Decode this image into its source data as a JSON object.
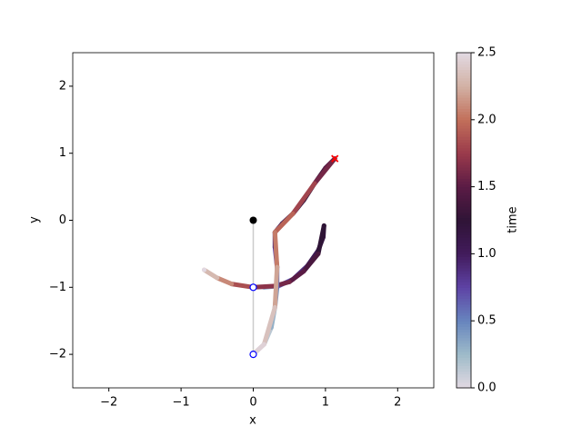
{
  "chart_data": {
    "type": "trajectory",
    "x_label": "x",
    "y_label": "y",
    "xlim": [
      -2.5,
      2.5
    ],
    "ylim": [
      -2.5,
      2.5
    ],
    "xticks": [
      {
        "value": -2,
        "label": "−2"
      },
      {
        "value": -1,
        "label": "−1"
      },
      0,
      1,
      2
    ],
    "yticks": [
      {
        "value": -2,
        "label": "−2"
      },
      {
        "value": -1,
        "label": "−1"
      },
      0,
      1,
      2
    ],
    "colorbar": {
      "label": "time",
      "lim": [
        0,
        2.5
      ],
      "ticks": [
        {
          "value": 0,
          "label": "0.0"
        },
        {
          "value": 0.5,
          "label": "0.5"
        },
        {
          "value": 1,
          "label": "1.0"
        },
        {
          "value": 1.5,
          "label": "1.5"
        },
        {
          "value": 2,
          "label": "2.0"
        },
        {
          "value": 2.5,
          "label": "2.5"
        }
      ],
      "colormap": [
        "#e2d9e2",
        "#9ebbc9",
        "#6785be",
        "#5e43a5",
        "#421b5c",
        "#2f1436",
        "#5a1b45",
        "#9a3a4b",
        "#c26f5a",
        "#d2b1a4",
        "#e2d9e2"
      ]
    },
    "series": [
      {
        "x": [
          0,
          0.15,
          0.35,
          0.55,
          0.75,
          0.9,
          0.97,
          0.98,
          0.9,
          0.7,
          0.5,
          0.3,
          0,
          -0.3,
          -0.5,
          -0.68
        ],
        "y": [
          -1,
          -1,
          -0.98,
          -0.88,
          -0.68,
          -0.45,
          -0.25,
          -0.08,
          -0.5,
          -0.76,
          -0.92,
          -0.98,
          -1,
          -0.95,
          -0.86,
          -0.74
        ],
        "t": [
          0,
          0.4,
          0.7,
          0.9,
          1.05,
          1.15,
          1.2,
          1.25,
          1.4,
          1.5,
          1.6,
          1.7,
          1.85,
          2.1,
          2.3,
          2.5
        ]
      },
      {
        "x": [
          0,
          0.15,
          0.25,
          0.3,
          0.33,
          0.33,
          0.3,
          0.3,
          0.4,
          0.55,
          0.7,
          0.85,
          1.0,
          1.13,
          0.85,
          0.55,
          0.3,
          0.33,
          0.3,
          0.15,
          0
        ],
        "y": [
          -2,
          -1.85,
          -1.6,
          -1.3,
          -1.0,
          -0.7,
          -0.4,
          -0.18,
          -0.05,
          0.1,
          0.3,
          0.55,
          0.78,
          0.92,
          0.55,
          0.1,
          -0.18,
          -0.7,
          -1.3,
          -1.85,
          -2
        ],
        "t": [
          0,
          0.15,
          0.3,
          0.45,
          0.6,
          0.75,
          0.9,
          1.0,
          1.1,
          1.2,
          1.3,
          1.4,
          1.5,
          1.6,
          1.8,
          1.95,
          2.05,
          2.2,
          2.35,
          2.45,
          2.5
        ]
      }
    ],
    "rod_color": "#cccccc",
    "pivot": {
      "x": 0,
      "y": 0,
      "color": "#000000"
    },
    "bobs": {
      "x": [
        0,
        0
      ],
      "y": [
        -1,
        -2
      ],
      "color": "#0000ff"
    },
    "end": {
      "x": 1.13,
      "y": 0.92,
      "color": "#ff0000"
    }
  }
}
